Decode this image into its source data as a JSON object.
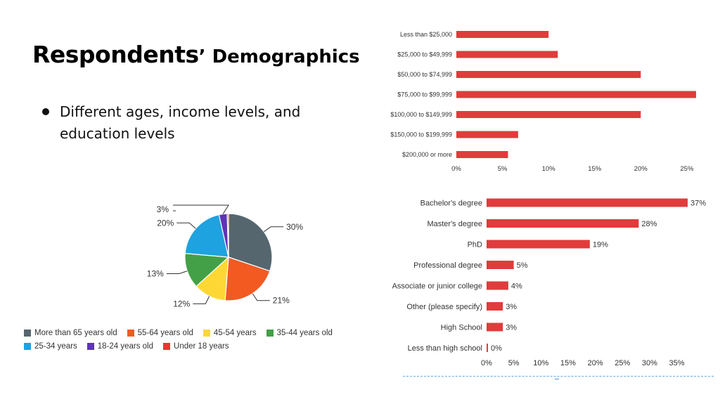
{
  "slide": {
    "title_part1": "Respondents",
    "title_part2": "’ Demographics",
    "bullet": "Different ages, income levels, and education levels"
  },
  "chart_data": [
    {
      "type": "bar",
      "orientation": "horizontal",
      "categories": [
        "Less than $25,000",
        "$25,000 to $49,999",
        "$50,000 to $74,999",
        "$75,000 to $99,999",
        "$100,000 to $149,999",
        "$150,000 to $199,999",
        "$200,000 or more"
      ],
      "values": [
        10,
        11,
        20,
        26,
        20,
        6.7,
        5.6
      ],
      "xlim": [
        0,
        26
      ],
      "xticks": [
        "0%",
        "5%",
        "10%",
        "15%",
        "20%",
        "25%"
      ],
      "xtick_values": [
        0,
        5,
        10,
        15,
        20,
        25
      ],
      "color": "#e03c3c",
      "data_labels": false
    },
    {
      "type": "pie",
      "slices": [
        {
          "label": "More than 65 years old",
          "value": 30,
          "display": "30%",
          "color": "#55666f"
        },
        {
          "label": "55-64 years old",
          "value": 21,
          "display": "21%",
          "color": "#f25a22"
        },
        {
          "label": "45-54 years",
          "value": 12,
          "display": "12%",
          "color": "#fdd835"
        },
        {
          "label": "35-44 years old",
          "value": 13,
          "display": "13%",
          "color": "#43a047"
        },
        {
          "label": "25-34 years",
          "value": 20,
          "display": "20%",
          "color": "#1fa2e0"
        },
        {
          "label": "18-24 years old",
          "value": 3,
          "display": "3%",
          "color": "#5e35b1"
        },
        {
          "label": "Under 18 years",
          "value": 0.5,
          "display": "",
          "color": "#e53935"
        }
      ],
      "legend_position": "bottom"
    },
    {
      "type": "bar",
      "orientation": "horizontal",
      "categories": [
        "Bachelor's degree",
        "Master's degree",
        "PhD",
        "Professional degree",
        "Associate or junior college",
        "Other (please specify)",
        "High School",
        "Less than high school"
      ],
      "values": [
        37,
        28,
        19,
        5,
        4,
        3,
        3,
        0
      ],
      "data_labels": [
        "37%",
        "28%",
        "19%",
        "5%",
        "4%",
        "3%",
        "3%",
        "0%"
      ],
      "xlim": [
        0,
        37
      ],
      "xticks": [
        "0%",
        "5%",
        "10%",
        "15%",
        "20%",
        "25%",
        "30%",
        "35%"
      ],
      "xtick_values": [
        0,
        5,
        10,
        15,
        20,
        25,
        30,
        35
      ],
      "color": "#e03c3c"
    }
  ]
}
